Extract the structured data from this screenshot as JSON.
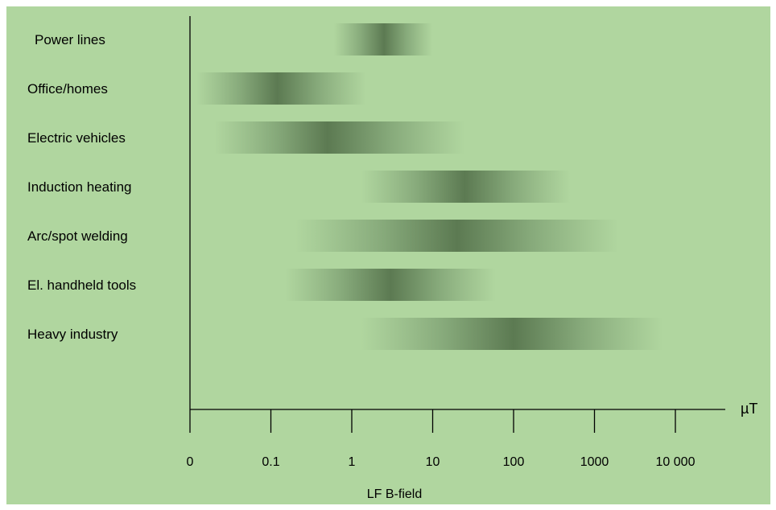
{
  "chart_data": {
    "type": "range",
    "categories": [
      "Power lines",
      "Office/homes",
      "Electric vehicles",
      "Induction heating",
      "Arc/spot welding",
      "El. handheld tools",
      "Heavy industry"
    ],
    "series": [
      {
        "ranges": [
          {
            "category": "Power lines",
            "min": 0.6,
            "max": 10,
            "peak": 2.5
          },
          {
            "category": "Office/homes",
            "min": 0.012,
            "max": 1.5,
            "peak": 0.12
          },
          {
            "category": "Electric vehicles",
            "min": 0.02,
            "max": 25,
            "peak": 0.5
          },
          {
            "category": "Induction heating",
            "min": 1.3,
            "max": 500,
            "peak": 25
          },
          {
            "category": "Arc/spot welding",
            "min": 0.2,
            "max": 2000,
            "peak": 20
          },
          {
            "category": "El. handheld tools",
            "min": 0.15,
            "max": 60,
            "peak": 3
          },
          {
            "category": "Heavy industry",
            "min": 1.3,
            "max": 7000,
            "peak": 100
          }
        ]
      }
    ],
    "x_ticks": [
      "0",
      "0.1",
      "1",
      "10",
      "100",
      "1000",
      "10 000"
    ],
    "x_tick_values": [
      0.01,
      0.1,
      1,
      10,
      100,
      1000,
      10000
    ],
    "xlabel": "LF B-field",
    "unit": "µT",
    "xscale": "log",
    "xlim": [
      0.01,
      10000
    ],
    "grid": false,
    "colors": {
      "background": "#b0d69f",
      "band_edge": "#b0d69f",
      "band_mid": "#86a97a",
      "band_peak": "#5c7a52",
      "axis": "#000000"
    }
  }
}
